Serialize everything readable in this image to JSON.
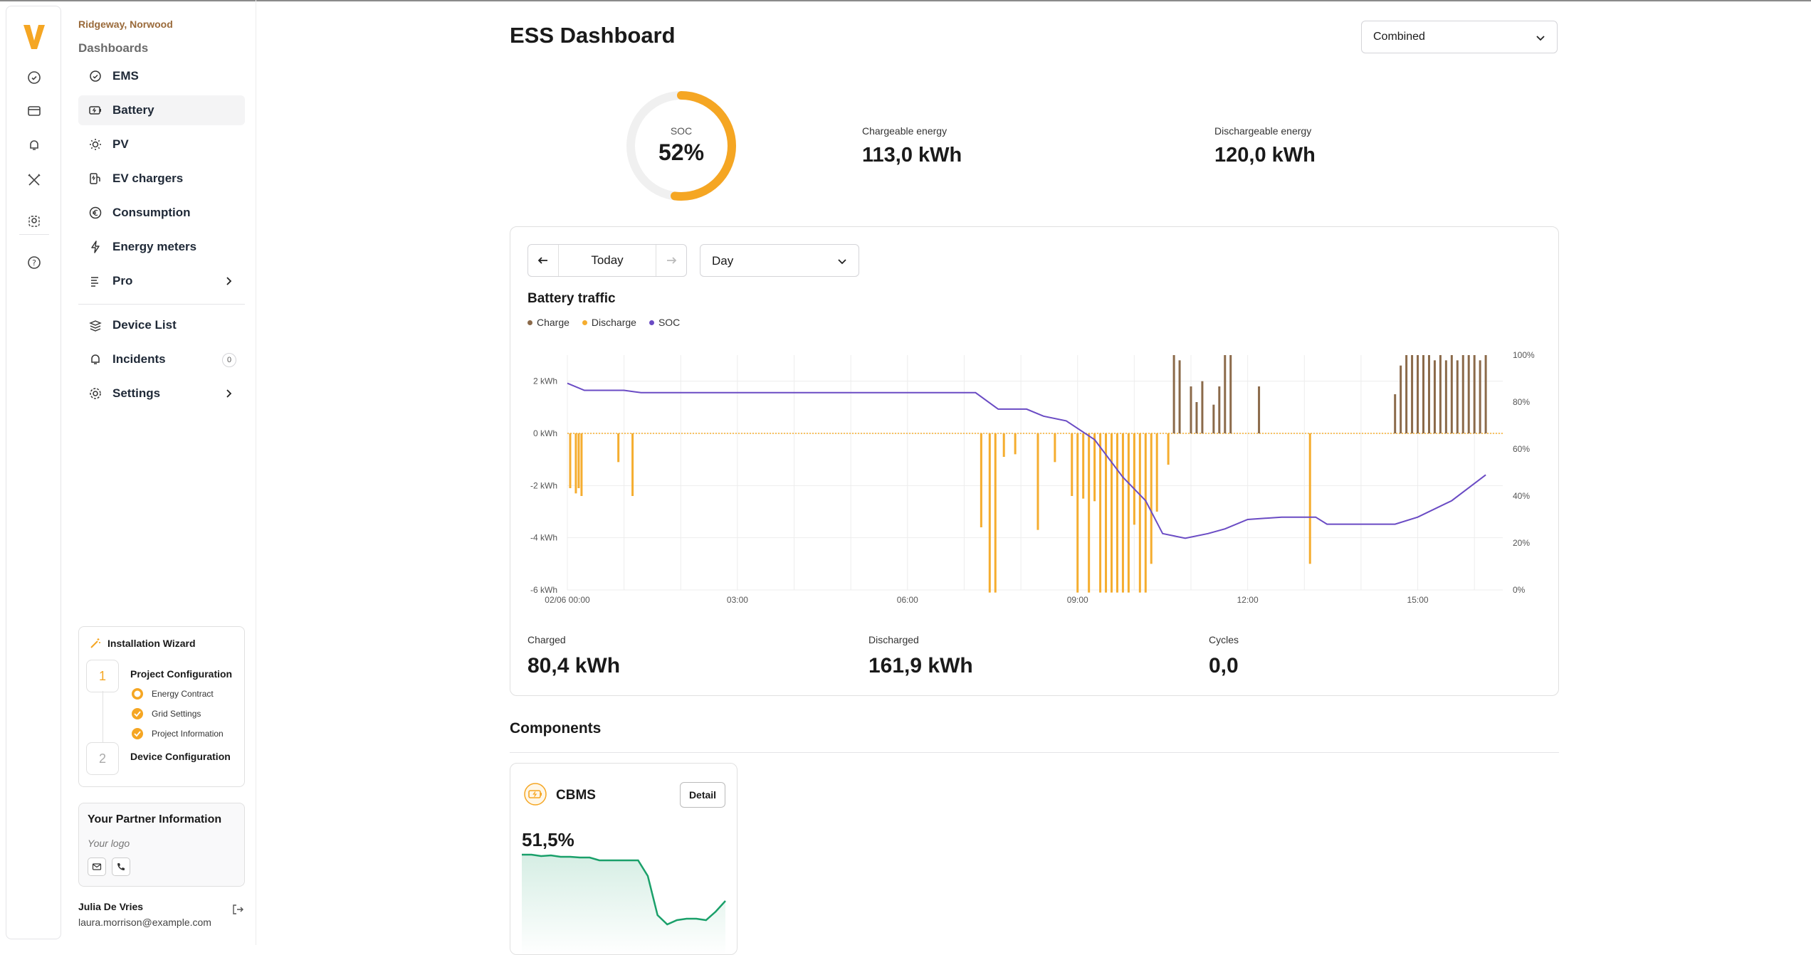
{
  "app": {
    "logo": "V"
  },
  "rail_icons": [
    "gauge-icon",
    "folder-icon",
    "bell-icon",
    "tools-icon",
    "users-icon",
    "help-icon"
  ],
  "sidebar": {
    "project": "Ridgeway, Norwood",
    "section": "Dashboards",
    "items": [
      {
        "label": "EMS",
        "icon": "gauge-icon"
      },
      {
        "label": "Battery",
        "icon": "battery-icon",
        "active": true
      },
      {
        "label": "PV",
        "icon": "sun-icon"
      },
      {
        "label": "EV chargers",
        "icon": "ev-charger-icon"
      },
      {
        "label": "Consumption",
        "icon": "euro-icon"
      },
      {
        "label": "Energy meters",
        "icon": "bolt-icon"
      },
      {
        "label": "Pro",
        "icon": "list-icon"
      }
    ],
    "items2": [
      {
        "label": "Device List",
        "icon": "stack-icon"
      },
      {
        "label": "Incidents",
        "icon": "bell-icon",
        "badge": "0"
      },
      {
        "label": "Settings",
        "icon": "gear-icon"
      }
    ],
    "wizard": {
      "title": "Installation Wizard",
      "steps": [
        {
          "num": "1",
          "title": "Project Configuration",
          "subs": [
            "Energy Contract",
            "Grid Settings",
            "Project Information"
          ]
        },
        {
          "num": "2",
          "title": "Device Configuration"
        }
      ]
    },
    "partner": {
      "title": "Your Partner Information",
      "logo": "Your logo"
    },
    "user": {
      "name": "Julia De Vries",
      "email": "laura.morrison@example.com"
    }
  },
  "page": {
    "title": "ESS Dashboard",
    "view_select": "Combined",
    "soc": {
      "label": "SOC",
      "value": "52%",
      "fraction": 0.52
    },
    "chargeable": {
      "label": "Chargeable energy",
      "value": "113,0 kWh"
    },
    "dischargeable": {
      "label": "Dischargeable energy",
      "value": "120,0 kWh"
    },
    "date_nav": {
      "current": "Today"
    },
    "period_select": "Day",
    "chart_title": "Battery traffic",
    "stats": [
      {
        "label": "Charged",
        "value": "80,4 kWh"
      },
      {
        "label": "Discharged",
        "value": "161,9 kWh"
      },
      {
        "label": "Cycles",
        "value": "0,0"
      }
    ],
    "components_title": "Components",
    "component": {
      "name": "CBMS",
      "button": "Detail",
      "value": "51,5%"
    }
  },
  "colors": {
    "accent": "#f5a623",
    "charge": "#8b6a4a",
    "discharge": "#f5ad2f",
    "soc": "#6a4bc4",
    "spark": "#1aa06a"
  },
  "chart_data": {
    "type": "bar",
    "x_ticks": [
      "02/06 00:00",
      "03:00",
      "06:00",
      "09:00",
      "12:00",
      "15:00"
    ],
    "y_ticks": [
      "2 kWh",
      "0 kWh",
      "-2 kWh",
      "-4 kWh",
      "-6 kWh"
    ],
    "y2_ticks": [
      "100%",
      "80%",
      "60%",
      "40%",
      "20%",
      "0%"
    ],
    "ylim": [
      -6,
      3
    ],
    "y2lim": [
      0,
      100
    ],
    "xlim_hours": [
      0,
      16.5
    ],
    "legend": [
      "Charge",
      "Discharge",
      "SOC"
    ],
    "series": [
      {
        "name": "Charge",
        "points": [
          [
            10.7,
            3
          ],
          [
            10.8,
            2.8
          ],
          [
            11.0,
            1.8
          ],
          [
            11.1,
            1.2
          ],
          [
            11.2,
            2.0
          ],
          [
            11.4,
            1.1
          ],
          [
            11.5,
            1.8
          ],
          [
            11.6,
            3.0
          ],
          [
            11.7,
            3.0
          ],
          [
            12.2,
            1.8
          ],
          [
            14.6,
            1.5
          ],
          [
            14.7,
            2.6
          ],
          [
            14.8,
            3.0
          ],
          [
            14.9,
            3.0
          ],
          [
            15.0,
            3.0
          ],
          [
            15.1,
            3.0
          ],
          [
            15.2,
            3.0
          ],
          [
            15.3,
            2.8
          ],
          [
            15.4,
            3.0
          ],
          [
            15.5,
            2.8
          ],
          [
            15.6,
            3.0
          ],
          [
            15.7,
            2.8
          ],
          [
            15.8,
            3.0
          ],
          [
            15.9,
            3.0
          ],
          [
            16.0,
            3.0
          ],
          [
            16.1,
            2.8
          ],
          [
            16.2,
            3.0
          ]
        ]
      },
      {
        "name": "Discharge",
        "points": [
          [
            0.05,
            -2.1
          ],
          [
            0.15,
            -2.3
          ],
          [
            0.2,
            -2.1
          ],
          [
            0.25,
            -2.4
          ],
          [
            0.9,
            -1.1
          ],
          [
            1.15,
            -2.4
          ],
          [
            7.3,
            -3.6
          ],
          [
            7.45,
            -6.1
          ],
          [
            7.55,
            -6.1
          ],
          [
            7.7,
            -0.9
          ],
          [
            7.9,
            -0.8
          ],
          [
            8.3,
            -3.7
          ],
          [
            8.6,
            -1.1
          ],
          [
            8.9,
            -2.4
          ],
          [
            9.0,
            -6.1
          ],
          [
            9.1,
            -2.5
          ],
          [
            9.2,
            -6.1
          ],
          [
            9.3,
            -2.6
          ],
          [
            9.4,
            -6.1
          ],
          [
            9.5,
            -6.1
          ],
          [
            9.6,
            -6.1
          ],
          [
            9.7,
            -6.1
          ],
          [
            9.8,
            -6.1
          ],
          [
            9.9,
            -6.1
          ],
          [
            10.0,
            -3.5
          ],
          [
            10.1,
            -6.1
          ],
          [
            10.2,
            -6.1
          ],
          [
            10.3,
            -5.0
          ],
          [
            10.4,
            -3.0
          ],
          [
            10.6,
            -1.2
          ],
          [
            13.1,
            -5.0
          ]
        ]
      },
      {
        "name": "SOC",
        "points": [
          [
            0,
            88
          ],
          [
            0.3,
            85
          ],
          [
            1,
            85
          ],
          [
            1.3,
            84
          ],
          [
            3,
            84
          ],
          [
            6,
            84
          ],
          [
            7.2,
            84
          ],
          [
            7.6,
            77
          ],
          [
            8.1,
            77
          ],
          [
            8.4,
            74
          ],
          [
            8.8,
            72
          ],
          [
            9.3,
            64
          ],
          [
            9.8,
            48
          ],
          [
            10.2,
            38
          ],
          [
            10.5,
            24
          ],
          [
            10.9,
            22
          ],
          [
            11.3,
            24
          ],
          [
            11.6,
            26
          ],
          [
            12.0,
            30
          ],
          [
            12.6,
            31
          ],
          [
            13.2,
            31
          ],
          [
            13.4,
            28
          ],
          [
            14.6,
            28
          ],
          [
            15.0,
            31
          ],
          [
            15.6,
            38
          ],
          [
            16.2,
            49
          ]
        ]
      }
    ]
  },
  "spark_data": {
    "type": "area",
    "values": [
      1.0,
      1.0,
      0.98,
      0.99,
      0.97,
      0.97,
      0.96,
      0.96,
      0.92,
      0.92,
      0.92,
      0.92,
      0.92,
      0.7,
      0.15,
      0.02,
      0.08,
      0.1,
      0.1,
      0.08,
      0.2,
      0.35
    ]
  }
}
